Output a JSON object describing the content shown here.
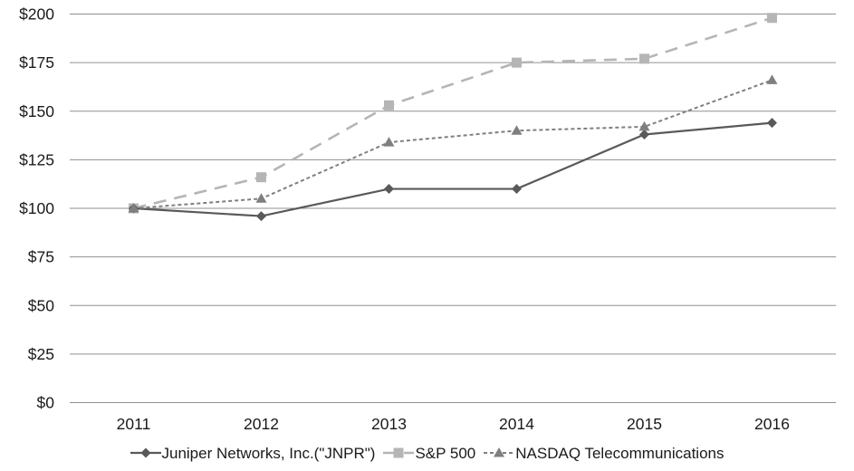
{
  "chart_data": {
    "type": "line",
    "title": "",
    "xlabel": "",
    "ylabel": "",
    "categories": [
      "2011",
      "2012",
      "2013",
      "2014",
      "2015",
      "2016"
    ],
    "series": [
      {
        "name": "Juniper Networks, Inc.(\"JNPR\")",
        "values": [
          100,
          96,
          110,
          110,
          138,
          144
        ],
        "color": "#595959",
        "marker": "diamond",
        "dash": "solid",
        "line_width": 2.2
      },
      {
        "name": "S&P 500",
        "values": [
          100,
          116,
          153,
          175,
          177,
          198
        ],
        "color": "#b5b5b5",
        "marker": "square",
        "dash": "long-dash",
        "line_width": 2.6
      },
      {
        "name": "NASDAQ Telecommunications",
        "values": [
          100,
          105,
          134,
          140,
          142,
          166
        ],
        "color": "#7f7f7f",
        "marker": "triangle",
        "dash": "short-dash",
        "line_width": 2
      }
    ],
    "draw_order": [
      1,
      0,
      2
    ],
    "ylim": [
      0,
      200
    ],
    "ytick_step": 25,
    "ytick_prefix": "$",
    "ytick_labels": [
      "$0",
      "$25",
      "$50",
      "$75",
      "$100",
      "$125",
      "$150",
      "$175",
      "$200"
    ],
    "grid": true,
    "legend_position": "bottom",
    "gridline_color": "#909090",
    "text_color": "#1a1a1a",
    "background": "#ffffff"
  }
}
